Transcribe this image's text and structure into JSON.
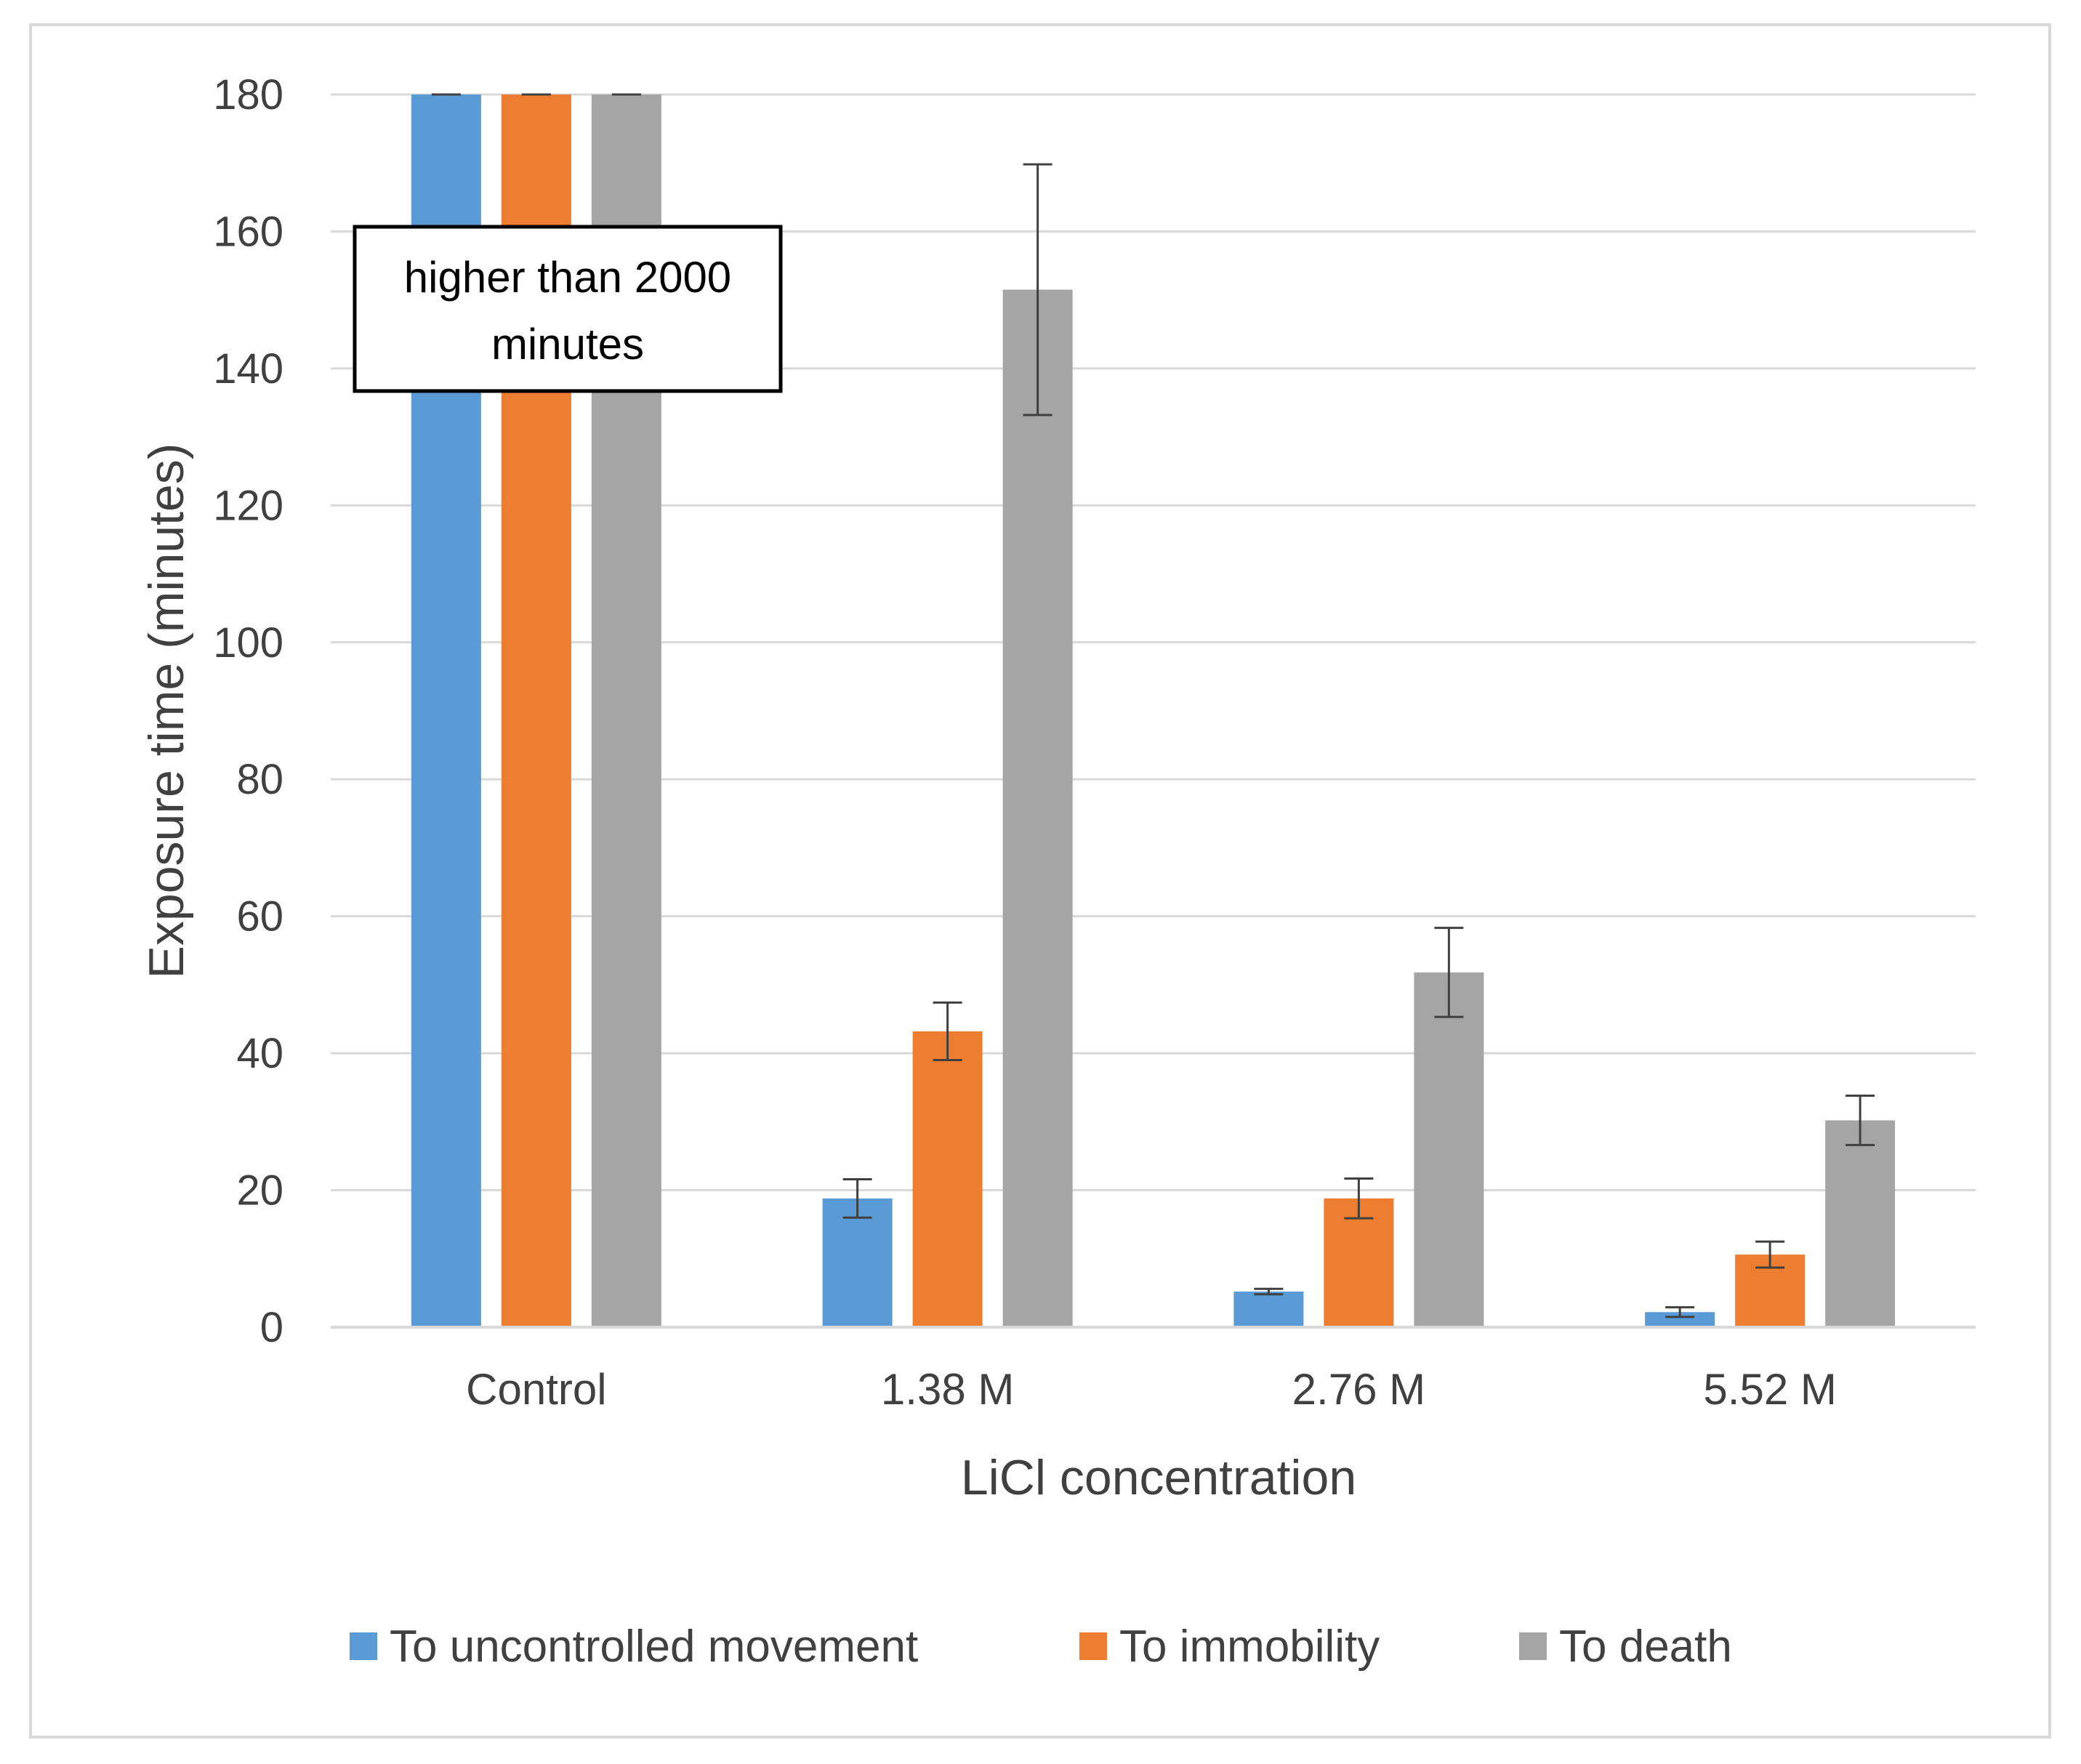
{
  "chart_data": {
    "type": "bar",
    "title": "",
    "xlabel": "LiCl concentration",
    "ylabel": "Exposure time (minutes)",
    "ylim": [
      0,
      180
    ],
    "yticks": [
      0,
      20,
      40,
      60,
      80,
      100,
      120,
      140,
      160,
      180
    ],
    "grid": true,
    "legend_position": "bottom",
    "categories": [
      "Control",
      "1.38 M",
      "2.76 M",
      "5.52 M"
    ],
    "series": [
      {
        "name": "To uncontrolled movement",
        "color": "#5b9bd5",
        "values": [
          180,
          18.8,
          5.2,
          2.2
        ],
        "errors": [
          0,
          2.8,
          0.4,
          0.7
        ]
      },
      {
        "name": "To immobility",
        "color": "#ed7d31",
        "values": [
          180,
          43.2,
          18.8,
          10.6
        ],
        "errors": [
          0,
          4.2,
          2.9,
          1.9
        ]
      },
      {
        "name": "To death",
        "color": "#a5a5a5",
        "values": [
          180,
          151.5,
          51.8,
          30.2
        ],
        "errors": [
          0,
          18.3,
          6.5,
          3.6
        ]
      }
    ],
    "annotations": [
      {
        "text_lines": [
          "higher than 2000",
          "minutes"
        ],
        "category": "Control"
      }
    ]
  }
}
